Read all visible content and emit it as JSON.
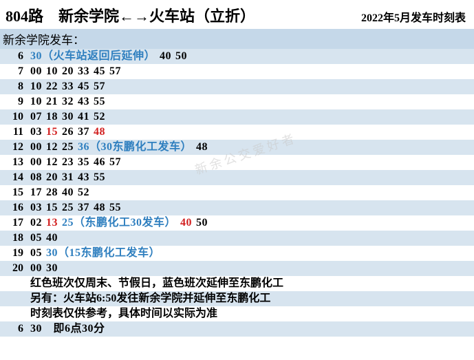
{
  "header": {
    "route_title": "804路　新余学院←→火车站（立折）",
    "date_label": "2022年5月发车时刻表"
  },
  "subhead": "新余学院发车：",
  "colors": {
    "red": "#d22020",
    "blue": "#2f7fbf",
    "black": "#000000",
    "band_even": "#d7e4ef",
    "band_odd": "#ffffff",
    "subhead_bg": "#c5d8e9"
  },
  "schedule": [
    {
      "hour": "6",
      "mins": [
        {
          "t": "30（火车站返回后延伸）",
          "c": "blue"
        },
        {
          "t": "40",
          "c": "blk"
        },
        {
          "t": "50",
          "c": "blk"
        }
      ]
    },
    {
      "hour": "7",
      "mins": [
        {
          "t": "00",
          "c": "blk"
        },
        {
          "t": "10",
          "c": "blk"
        },
        {
          "t": "20",
          "c": "blk"
        },
        {
          "t": "33",
          "c": "blk"
        },
        {
          "t": "45",
          "c": "blk"
        },
        {
          "t": "57",
          "c": "blk"
        }
      ]
    },
    {
      "hour": "8",
      "mins": [
        {
          "t": "10",
          "c": "blk"
        },
        {
          "t": "22",
          "c": "blk"
        },
        {
          "t": "33",
          "c": "blk"
        },
        {
          "t": "45",
          "c": "blk"
        },
        {
          "t": "57",
          "c": "blk"
        }
      ]
    },
    {
      "hour": "9",
      "mins": [
        {
          "t": "10",
          "c": "blk"
        },
        {
          "t": "21",
          "c": "blk"
        },
        {
          "t": "32",
          "c": "blk"
        },
        {
          "t": "43",
          "c": "blk"
        },
        {
          "t": "55",
          "c": "blk"
        }
      ]
    },
    {
      "hour": "10",
      "mins": [
        {
          "t": "07",
          "c": "blk"
        },
        {
          "t": "18",
          "c": "blk"
        },
        {
          "t": "30",
          "c": "blk"
        },
        {
          "t": "41",
          "c": "blk"
        },
        {
          "t": "52",
          "c": "blk"
        }
      ]
    },
    {
      "hour": "11",
      "mins": [
        {
          "t": "03",
          "c": "blk"
        },
        {
          "t": "15",
          "c": "red"
        },
        {
          "t": "26",
          "c": "blk"
        },
        {
          "t": "37",
          "c": "blk"
        },
        {
          "t": "48",
          "c": "red"
        }
      ]
    },
    {
      "hour": "12",
      "mins": [
        {
          "t": "00",
          "c": "blk"
        },
        {
          "t": "12",
          "c": "blk"
        },
        {
          "t": "25",
          "c": "blk"
        },
        {
          "t": "36（30东鹏化工发车）",
          "c": "blue"
        },
        {
          "t": "48",
          "c": "blk"
        }
      ]
    },
    {
      "hour": "13",
      "mins": [
        {
          "t": "00",
          "c": "blk"
        },
        {
          "t": "12",
          "c": "blk"
        },
        {
          "t": "23",
          "c": "blk"
        },
        {
          "t": "35",
          "c": "blk"
        },
        {
          "t": "46",
          "c": "blk"
        },
        {
          "t": "57",
          "c": "blk"
        }
      ]
    },
    {
      "hour": "14",
      "mins": [
        {
          "t": "08",
          "c": "blk"
        },
        {
          "t": "20",
          "c": "blk"
        },
        {
          "t": "31",
          "c": "blk"
        },
        {
          "t": "43",
          "c": "blk"
        },
        {
          "t": "55",
          "c": "blk"
        }
      ]
    },
    {
      "hour": "15",
      "mins": [
        {
          "t": "17",
          "c": "blk"
        },
        {
          "t": "28",
          "c": "blk"
        },
        {
          "t": "40",
          "c": "blk"
        },
        {
          "t": "52",
          "c": "blk"
        }
      ]
    },
    {
      "hour": "16",
      "mins": [
        {
          "t": "03",
          "c": "blk"
        },
        {
          "t": "15",
          "c": "blk"
        },
        {
          "t": "25",
          "c": "blk"
        },
        {
          "t": "37",
          "c": "blk"
        },
        {
          "t": "48",
          "c": "blk"
        },
        {
          "t": "55",
          "c": "blk"
        }
      ]
    },
    {
      "hour": "17",
      "mins": [
        {
          "t": "02",
          "c": "blk"
        },
        {
          "t": "13",
          "c": "red"
        },
        {
          "t": "25（东鹏化工30发车）",
          "c": "blue"
        },
        {
          "t": "40",
          "c": "red"
        },
        {
          "t": "50",
          "c": "blk"
        }
      ]
    },
    {
      "hour": "18",
      "mins": [
        {
          "t": "05",
          "c": "blk"
        },
        {
          "t": "40",
          "c": "blk"
        }
      ]
    },
    {
      "hour": "19",
      "mins": [
        {
          "t": "05",
          "c": "blk"
        },
        {
          "t": "30（15东鹏化工发车）",
          "c": "blue"
        }
      ]
    },
    {
      "hour": "20",
      "mins": [
        {
          "t": "00",
          "c": "blk"
        },
        {
          "t": "30",
          "c": "blk"
        }
      ]
    }
  ],
  "notes": [
    "红色班次仅周末、节假日，蓝色班次延伸至东鹏化工",
    "另有：火车站6:50发往新余学院并延伸至东鹏化工",
    "时刻表仅供参考，具体时间以实际为准"
  ],
  "legend": {
    "hour": "6",
    "text": "30　即6点30分"
  },
  "watermark": "新余公交爱好者"
}
